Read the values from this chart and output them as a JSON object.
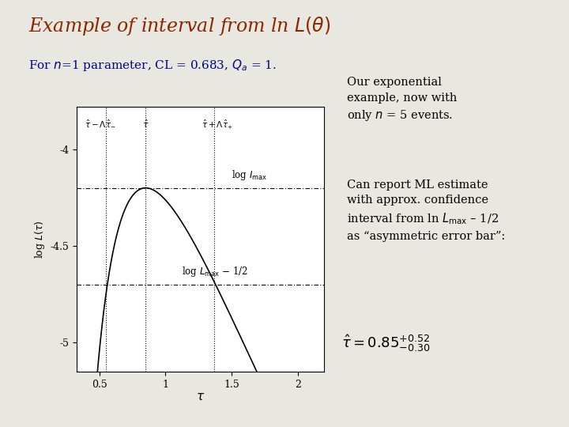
{
  "title": "Example of interval from ln $L(\\theta)$",
  "title_color": "#8B2500",
  "subtitle_color": "#00008B",
  "bg_color": "#e8e8e0",
  "ylabel": "log $L(\\tau)$",
  "ylim": [
    -5.15,
    -3.78
  ],
  "xlim": [
    0.33,
    2.2
  ],
  "tau_hat": 0.85,
  "log_Lmax": -4.2,
  "tau_minus": 0.55,
  "tau_plus": 1.37,
  "n_events": 5,
  "plot_bg": "#ffffff",
  "curve_color": "#000000",
  "line_color": "#000000"
}
